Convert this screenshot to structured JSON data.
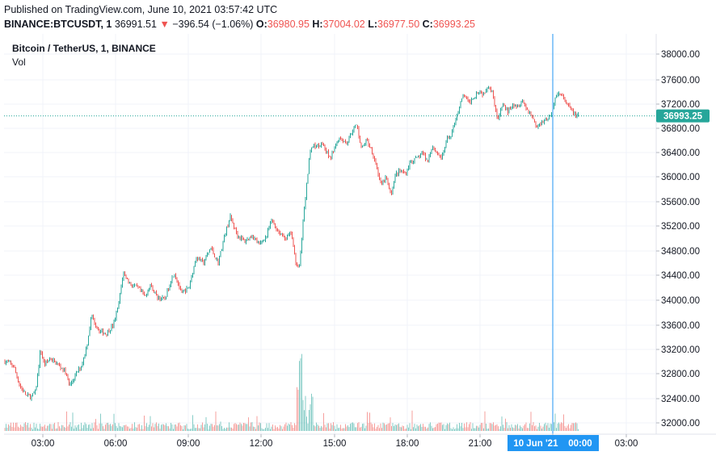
{
  "published": "Published on TradingView.com, June 10, 2021 03:57:42 UTC",
  "symbol": "BINANCE:BTCUSDT, 1",
  "last": "36991.51",
  "change": "−396.54 (−1.06%)",
  "ohlc": {
    "o_label": "O:",
    "o": "36980.95",
    "h_label": "H:",
    "h": "37004.02",
    "l_label": "L:",
    "l": "36977.50",
    "c_label": "C:",
    "c": "36993.25"
  },
  "legend": {
    "series": "Bitcoin / TetherUS, 1, BINANCE",
    "volume": "Vol"
  },
  "colors": {
    "up": "#26a69a",
    "down": "#ef5350",
    "crosshair": "#2196f3",
    "price_tag": "#26a69a"
  },
  "crosshair_label": "10 Jun '21    00:00",
  "current_price_tag": "36993.25",
  "chart_data": {
    "type": "candlestick",
    "title": "Bitcoin / TetherUS, 1, BINANCE",
    "y_axis": {
      "ticks": [
        "38000.00",
        "37600.00",
        "37200.00",
        "36800.00",
        "36400.00",
        "36000.00",
        "35600.00",
        "35200.00",
        "34800.00",
        "34400.00",
        "34000.00",
        "33600.00",
        "33200.00",
        "32800.00",
        "32400.00",
        "32000.00"
      ],
      "min": 31950,
      "max": 38200
    },
    "x_axis": {
      "ticks": [
        "03:00",
        "06:00",
        "09:00",
        "12:00",
        "15:00",
        "18:00",
        "21:00",
        "00:00",
        "03:00"
      ]
    },
    "price_path": [
      [
        0,
        33000
      ],
      [
        0.3,
        32920
      ],
      [
        0.55,
        32600
      ],
      [
        0.8,
        32450
      ],
      [
        1.0,
        32420
      ],
      [
        1.2,
        32500
      ],
      [
        1.4,
        33200
      ],
      [
        1.55,
        32950
      ],
      [
        1.8,
        33050
      ],
      [
        2.1,
        32950
      ],
      [
        2.4,
        32850
      ],
      [
        2.6,
        32600
      ],
      [
        2.8,
        32750
      ],
      [
        3.1,
        32950
      ],
      [
        3.3,
        33250
      ],
      [
        3.5,
        33750
      ],
      [
        3.8,
        33500
      ],
      [
        4.1,
        33450
      ],
      [
        4.4,
        33600
      ],
      [
        4.6,
        33900
      ],
      [
        4.8,
        34450
      ],
      [
        5.1,
        34250
      ],
      [
        5.4,
        34200
      ],
      [
        5.7,
        34050
      ],
      [
        5.9,
        34250
      ],
      [
        6.2,
        34050
      ],
      [
        6.5,
        34000
      ],
      [
        6.7,
        34250
      ],
      [
        6.9,
        34450
      ],
      [
        7.2,
        34100
      ],
      [
        7.5,
        34200
      ],
      [
        7.8,
        34700
      ],
      [
        8.1,
        34600
      ],
      [
        8.4,
        34850
      ],
      [
        8.7,
        34600
      ],
      [
        9.0,
        35100
      ],
      [
        9.2,
        35350
      ],
      [
        9.5,
        35050
      ],
      [
        9.8,
        34950
      ],
      [
        10.1,
        35050
      ],
      [
        10.4,
        34900
      ],
      [
        10.7,
        35050
      ],
      [
        10.9,
        35300
      ],
      [
        11.2,
        35100
      ],
      [
        11.5,
        35000
      ],
      [
        11.7,
        35100
      ],
      [
        11.9,
        34600
      ],
      [
        12.05,
        34550
      ],
      [
        12.2,
        35300
      ],
      [
        12.35,
        35900
      ],
      [
        12.5,
        36500
      ],
      [
        12.7,
        36500
      ],
      [
        13.0,
        36550
      ],
      [
        13.3,
        36300
      ],
      [
        13.5,
        36500
      ],
      [
        13.7,
        36650
      ],
      [
        14.0,
        36550
      ],
      [
        14.2,
        36750
      ],
      [
        14.4,
        36850
      ],
      [
        14.6,
        36450
      ],
      [
        14.8,
        36600
      ],
      [
        15.0,
        36450
      ],
      [
        15.2,
        36200
      ],
      [
        15.4,
        35850
      ],
      [
        15.6,
        36000
      ],
      [
        15.8,
        35700
      ],
      [
        16.0,
        36050
      ],
      [
        16.2,
        36100
      ],
      [
        16.4,
        36050
      ],
      [
        16.6,
        36250
      ],
      [
        16.9,
        36300
      ],
      [
        17.1,
        36400
      ],
      [
        17.3,
        36250
      ],
      [
        17.5,
        36500
      ],
      [
        17.7,
        36400
      ],
      [
        17.9,
        36300
      ],
      [
        18.1,
        36600
      ],
      [
        18.3,
        36700
      ],
      [
        18.5,
        37000
      ],
      [
        18.8,
        37350
      ],
      [
        19.0,
        37200
      ],
      [
        19.2,
        37300
      ],
      [
        19.4,
        37400
      ],
      [
        19.6,
        37350
      ],
      [
        19.8,
        37500
      ],
      [
        20.0,
        37350
      ],
      [
        20.2,
        36900
      ],
      [
        20.4,
        37200
      ],
      [
        20.6,
        37050
      ],
      [
        20.8,
        37200
      ],
      [
        21.0,
        37150
      ],
      [
        21.2,
        37250
      ],
      [
        21.4,
        37100
      ],
      [
        21.6,
        37000
      ],
      [
        21.8,
        36800
      ],
      [
        22.0,
        36900
      ],
      [
        22.2,
        36950
      ],
      [
        22.4,
        37000
      ],
      [
        22.6,
        37350
      ],
      [
        22.8,
        37350
      ],
      [
        23.0,
        37200
      ],
      [
        23.2,
        37100
      ],
      [
        23.4,
        37000
      ],
      [
        23.55,
        36993
      ]
    ]
  }
}
